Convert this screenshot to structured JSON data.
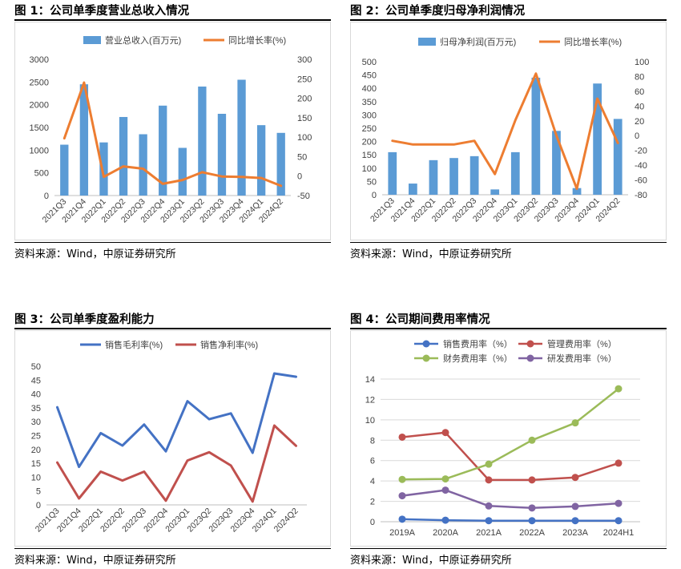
{
  "panels": [
    {
      "title": "图 1：公司单季度营业总收入情况",
      "source": "资料来源：Wind，中原证券研究所"
    },
    {
      "title": "图 2：公司单季度归母净利润情况",
      "source": "资料来源：Wind，中原证券研究所"
    },
    {
      "title": "图 3：公司单季度盈利能力",
      "source": "资料来源：Wind，中原证券研究所"
    },
    {
      "title": "图 4：公司期间费用率情况",
      "source": "资料来源：Wind，中原证券研究所"
    }
  ],
  "chart_data": [
    {
      "type": "bar",
      "title": "",
      "categories": [
        "2021Q3",
        "2021Q4",
        "2022Q1",
        "2022Q2",
        "2022Q3",
        "2022Q4",
        "2023Q1",
        "2023Q2",
        "2023Q3",
        "2023Q4",
        "2024Q1",
        "2024Q2"
      ],
      "series": [
        {
          "name": "营业总收入(百万元)",
          "type": "bar",
          "axis": "left",
          "color": "#5b9bd5",
          "values": [
            1120,
            2450,
            1170,
            1730,
            1350,
            1980,
            1050,
            2400,
            1800,
            2550,
            1550,
            1380
          ]
        },
        {
          "name": "同比增长率(%)",
          "type": "line",
          "axis": "right",
          "color": "#ed7d31",
          "values": [
            97,
            240,
            -2,
            25,
            19,
            -20,
            -10,
            10,
            -1,
            -2,
            -5,
            -25
          ]
        }
      ],
      "ylim_left": [
        0,
        3000
      ],
      "yticks_left": [
        0,
        500,
        1000,
        1500,
        2000,
        2500,
        3000
      ],
      "ylim_right": [
        -50,
        300
      ],
      "yticks_right": [
        -50,
        0,
        50,
        100,
        150,
        200,
        250,
        300
      ],
      "legend": "top",
      "grid": false
    },
    {
      "type": "bar",
      "title": "",
      "categories": [
        "2021Q3",
        "2021Q4",
        "2022Q1",
        "2022Q2",
        "2022Q3",
        "2022Q4",
        "2023Q1",
        "2023Q2",
        "2023Q3",
        "2023Q4",
        "2024Q1",
        "2024Q2"
      ],
      "series": [
        {
          "name": "归母净利润(百万元)",
          "type": "bar",
          "axis": "left",
          "color": "#5b9bd5",
          "values": [
            160,
            42,
            130,
            138,
            145,
            20,
            160,
            440,
            240,
            25,
            418,
            285
          ]
        },
        {
          "name": "同比增长率(%)",
          "type": "line",
          "axis": "right",
          "color": "#ed7d31",
          "values": [
            -7,
            -12,
            -12,
            -12,
            -7,
            -52,
            21,
            84,
            0,
            -72,
            50,
            -10
          ]
        }
      ],
      "ylim_left": [
        0,
        500
      ],
      "yticks_left": [
        0,
        50,
        100,
        150,
        200,
        250,
        300,
        350,
        400,
        450,
        500
      ],
      "ylim_right": [
        -80,
        100
      ],
      "yticks_right": [
        -80,
        -60,
        -40,
        -20,
        0,
        20,
        40,
        60,
        80,
        100
      ],
      "legend": "top",
      "grid": false
    },
    {
      "type": "line",
      "title": "",
      "categories": [
        "2021Q3",
        "2021Q4",
        "2022Q1",
        "2022Q2",
        "2022Q3",
        "2022Q4",
        "2023Q1",
        "2023Q2",
        "2023Q3",
        "2023Q4",
        "2024Q1",
        "2024Q2"
      ],
      "series": [
        {
          "name": "销售毛利率(%)",
          "color": "#4472c4",
          "values": [
            35.2,
            13.7,
            25.9,
            21.4,
            29.0,
            19.3,
            37.4,
            30.9,
            33.0,
            18.8,
            47.4,
            46.2
          ]
        },
        {
          "name": "销售净利率(%)",
          "color": "#c0504d",
          "values": [
            15.3,
            2.3,
            12.0,
            8.8,
            12.0,
            1.5,
            16.0,
            19.0,
            14.2,
            1.2,
            28.6,
            21.3
          ]
        }
      ],
      "ylim": [
        0,
        50
      ],
      "yticks": [
        0,
        5,
        10,
        15,
        20,
        25,
        30,
        35,
        40,
        45,
        50
      ],
      "legend": "top",
      "grid": false
    },
    {
      "type": "line",
      "title": "",
      "categories": [
        "2019A",
        "2020A",
        "2021A",
        "2022A",
        "2023A",
        "2024H1"
      ],
      "series": [
        {
          "name": "销售费用率（%）",
          "color": "#4472c4",
          "values": [
            0.25,
            0.15,
            0.1,
            0.1,
            0.1,
            0.1
          ]
        },
        {
          "name": "管理费用率（%）",
          "color": "#c0504d",
          "values": [
            8.3,
            8.75,
            4.1,
            4.1,
            4.35,
            5.75
          ]
        },
        {
          "name": "财务费用率（%）",
          "color": "#9bbb59",
          "values": [
            4.15,
            4.2,
            5.65,
            8.0,
            9.7,
            13.05
          ]
        },
        {
          "name": "研发费用率（%）",
          "color": "#8064a2",
          "values": [
            2.55,
            3.1,
            1.55,
            1.35,
            1.5,
            1.8
          ]
        }
      ],
      "ylim": [
        0,
        14
      ],
      "yticks": [
        0,
        2,
        4,
        6,
        8,
        10,
        12,
        14
      ],
      "legend": "top",
      "grid": true
    }
  ]
}
